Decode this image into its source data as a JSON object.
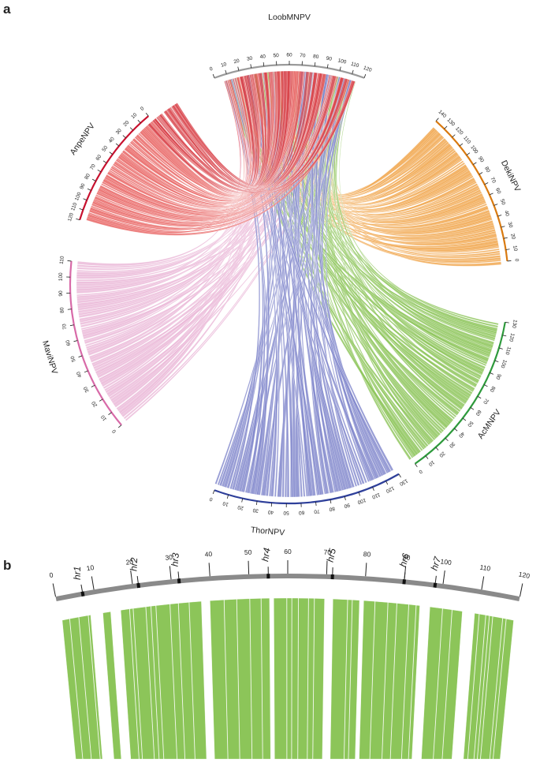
{
  "panels": {
    "a": "a",
    "b": "b"
  },
  "colors": {
    "LoobMNPV": "#9e9e9e",
    "DekiNPV": "#f0a54a",
    "AcMNPV": "#8cc559",
    "ThorNPV": "#8187cc",
    "MaviNPV": "#eab8d8",
    "AnpeNPV": "#e8605f",
    "loob_red": "#d9434a",
    "axis_AnpeNPV": "#c8102e",
    "axis_DekiNPV": "#d97a10",
    "axis_AcMNPV": "#2e9a3c",
    "axis_ThorNPV": "#2e3f9a",
    "axis_MaviNPV": "#d86aa8",
    "axis_LoobMNPV": "#9a9a9a",
    "zoom_ribbon": "#8cc559",
    "zoom_axis": "#8a8a8a"
  },
  "genomes": [
    {
      "name": "LoobMNPV",
      "ticks": [
        "0",
        "10",
        "20",
        "30",
        "40",
        "50",
        "60",
        "70",
        "80",
        "90",
        "100",
        "110",
        "120"
      ]
    },
    {
      "name": "DekiNPV",
      "ticks": [
        "0",
        "10",
        "20",
        "30",
        "40",
        "50",
        "60",
        "70",
        "80",
        "90",
        "100",
        "110",
        "120",
        "130",
        "140"
      ]
    },
    {
      "name": "AcMNPV",
      "ticks": [
        "0",
        "10",
        "20",
        "30",
        "40",
        "50",
        "60",
        "70",
        "80",
        "90",
        "100",
        "110",
        "120",
        "130"
      ]
    },
    {
      "name": "ThorNPV",
      "ticks": [
        "0",
        "10",
        "20",
        "30",
        "40",
        "50",
        "60",
        "70",
        "80",
        "90",
        "100",
        "110",
        "120",
        "130"
      ]
    },
    {
      "name": "MaviNPV",
      "ticks": [
        "0",
        "10",
        "20",
        "30",
        "40",
        "50",
        "60",
        "70",
        "80",
        "90",
        "100",
        "110"
      ]
    },
    {
      "name": "AnpeNPV",
      "ticks": [
        "0",
        "10",
        "20",
        "30",
        "40",
        "50",
        "60",
        "70",
        "80",
        "90",
        "100",
        "110",
        "120"
      ]
    }
  ],
  "zoom": {
    "genome": "LoobMNPV",
    "ticks": [
      "0",
      "10",
      "20",
      "30",
      "40",
      "50",
      "60",
      "70",
      "80",
      "90",
      "100",
      "110",
      "120"
    ],
    "hr_regions": [
      {
        "label": "hr1",
        "position": 7
      },
      {
        "label": "hr2",
        "position": 21.5
      },
      {
        "label": "hr3",
        "position": 32
      },
      {
        "label": "hr4",
        "position": 55
      },
      {
        "label": "hr5",
        "position": 71.5
      },
      {
        "label": "hr6",
        "position": 90
      },
      {
        "label": "hr7",
        "position": 98
      }
    ]
  }
}
